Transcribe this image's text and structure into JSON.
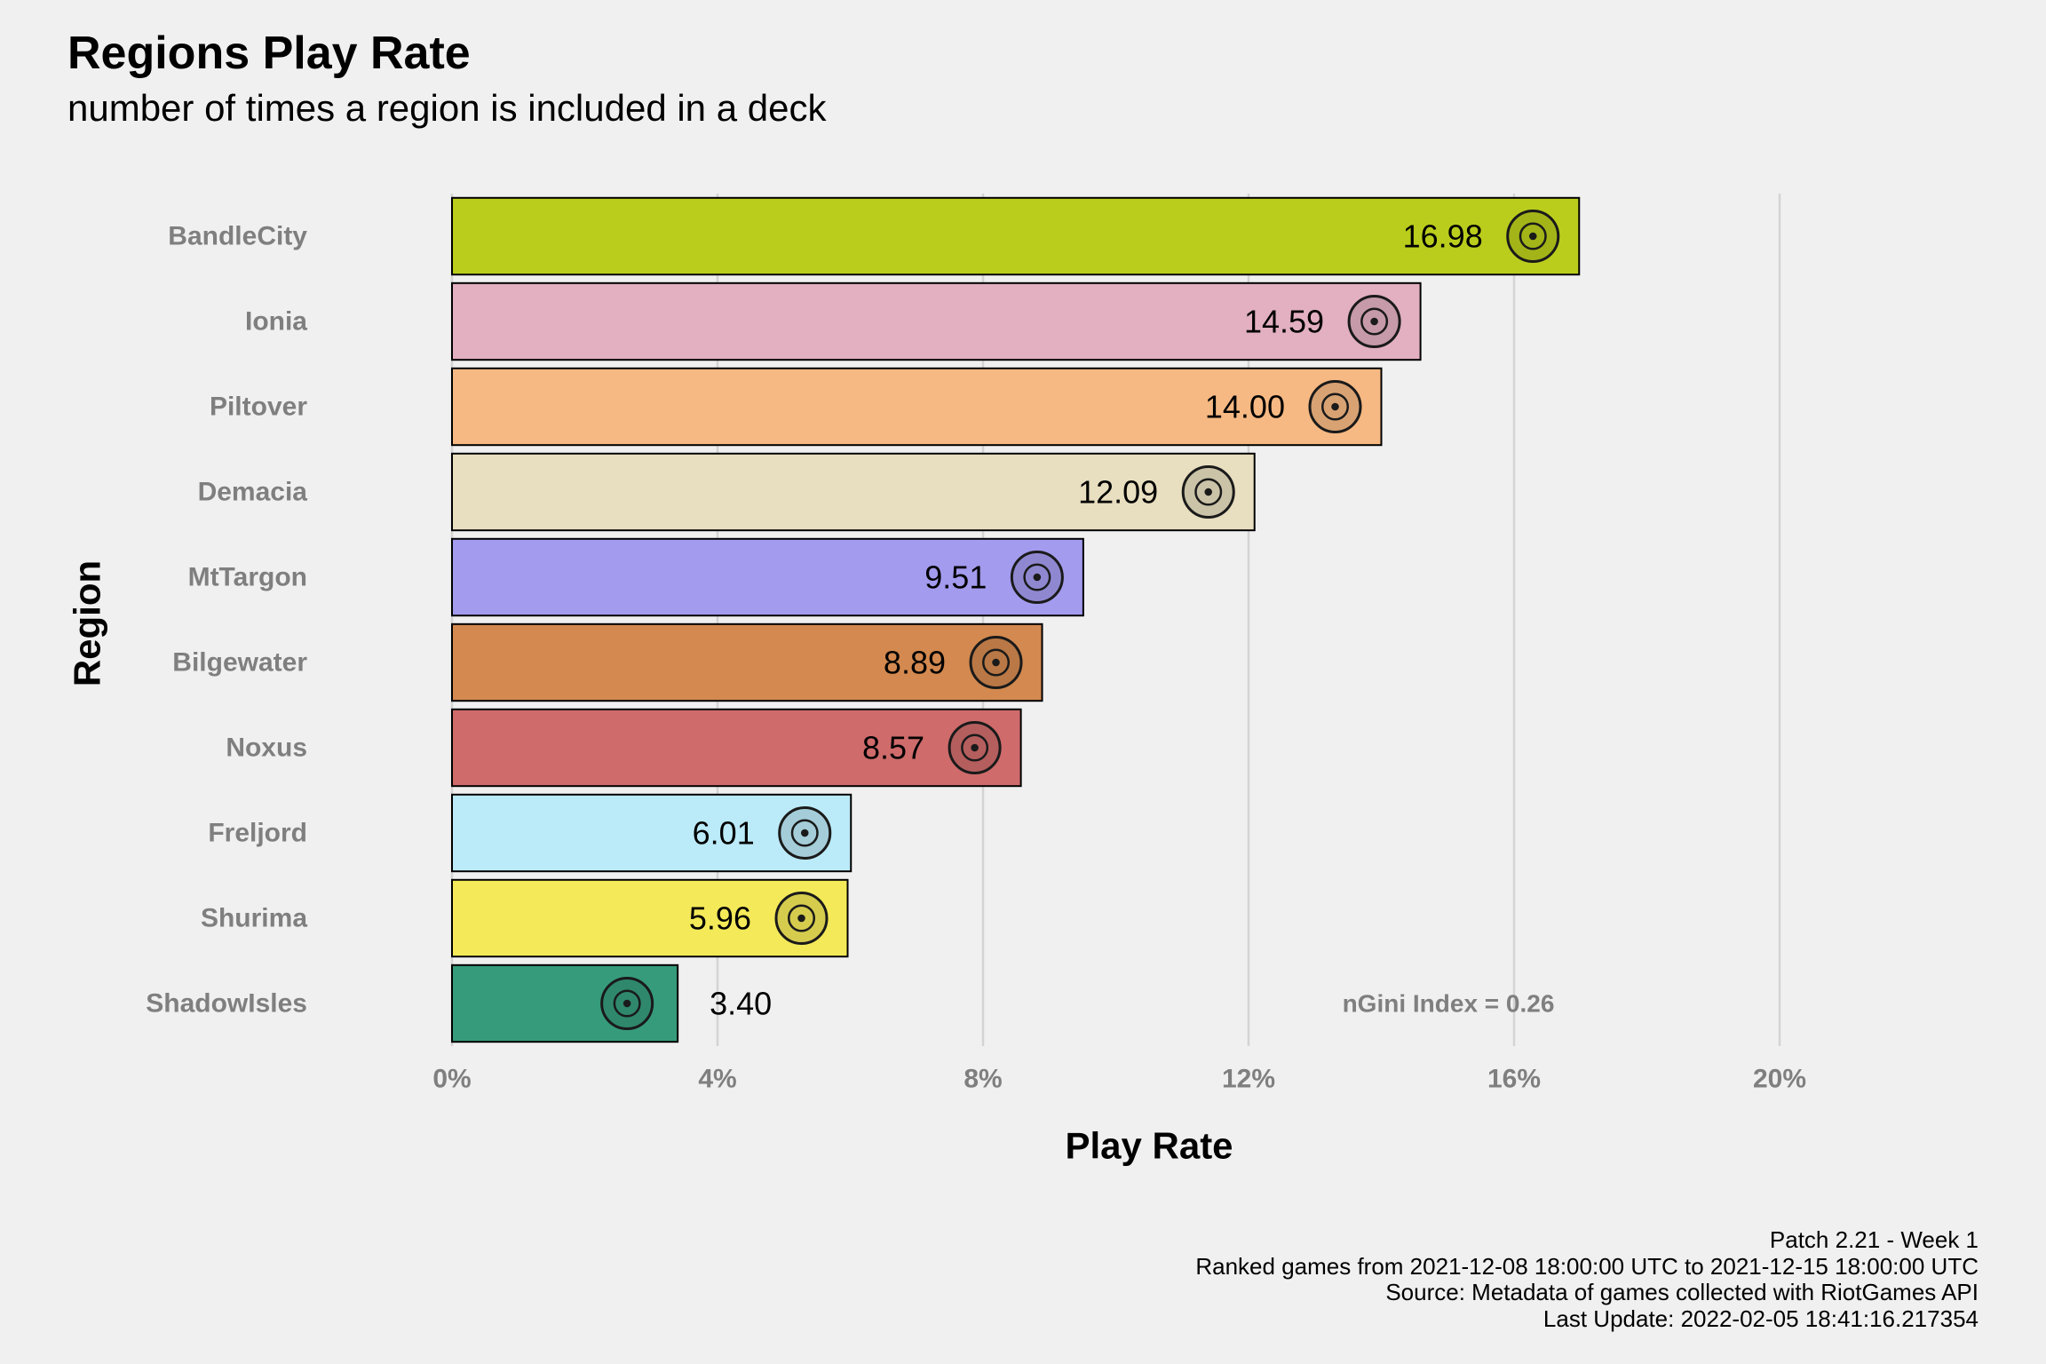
{
  "chart_data": {
    "type": "bar",
    "orientation": "horizontal",
    "title": "Regions Play Rate",
    "subtitle": "number of times a region is included in a deck",
    "xlabel": "Play Rate",
    "ylabel": "Region",
    "xlim": [
      0,
      20
    ],
    "xticks": [
      "0%",
      "4%",
      "8%",
      "12%",
      "16%",
      "20%"
    ],
    "xtick_values": [
      0,
      4,
      8,
      12,
      16,
      20
    ],
    "grid": "vertical major gridlines",
    "categories": [
      "BandleCity",
      "Ionia",
      "Piltover",
      "Demacia",
      "MtTargon",
      "Bilgewater",
      "Noxus",
      "Freljord",
      "Shurima",
      "ShadowIsles"
    ],
    "values": [
      16.98,
      14.59,
      14.0,
      12.09,
      9.51,
      8.89,
      8.57,
      6.01,
      5.96,
      3.4
    ],
    "data_labels": [
      "16.98",
      "14.59",
      "14.00",
      "12.09",
      "9.51",
      "8.89",
      "8.57",
      "6.01",
      "5.96",
      "3.40"
    ],
    "colors": [
      "#bacd1c",
      "#e2b0c0",
      "#f6b983",
      "#e8dec0",
      "#a39bee",
      "#d3894f",
      "#cf6b6b",
      "#bbeaf8",
      "#f3e959",
      "#369b7b"
    ],
    "icons": [
      "bandle-city-icon",
      "ionia-icon",
      "piltover-icon",
      "demacia-icon",
      "mt-targon-icon",
      "bilgewater-icon",
      "noxus-icon",
      "freljord-icon",
      "shurima-icon",
      "shadow-isles-icon"
    ],
    "annotation": "nGini Index = 0.26"
  },
  "caption": [
    "Patch 2.21 - Week 1",
    "Ranked games from 2021-12-08 18:00:00 UTC to 2021-12-15 18:00:00 UTC",
    "Source: Metadata of games collected with RiotGames API",
    "Last Update: 2022-02-05 18:41:16.217354"
  ]
}
